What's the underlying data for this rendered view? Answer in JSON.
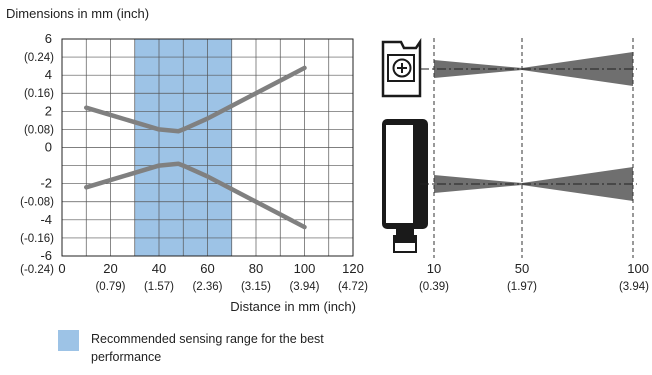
{
  "chart_data": {
    "type": "line",
    "title": "Dimensions in mm (inch)",
    "xlabel": "Distance in mm (inch)",
    "xlim": [
      0,
      120
    ],
    "ylim": [
      -6,
      6
    ],
    "grid": true,
    "x_ticks": [
      {
        "value": 0,
        "mm": "0",
        "inch": ""
      },
      {
        "value": 20,
        "mm": "20",
        "inch": "(0.79)"
      },
      {
        "value": 40,
        "mm": "40",
        "inch": "(1.57)"
      },
      {
        "value": 60,
        "mm": "60",
        "inch": "(2.36)"
      },
      {
        "value": 80,
        "mm": "80",
        "inch": "(3.15)"
      },
      {
        "value": 100,
        "mm": "100",
        "inch": "(3.94)"
      },
      {
        "value": 120,
        "mm": "120",
        "inch": "(4.72)"
      }
    ],
    "y_ticks": [
      {
        "value": 6,
        "mm": "6",
        "inch": "(0.24)"
      },
      {
        "value": 4,
        "mm": "4",
        "inch": "(0.16)"
      },
      {
        "value": 2,
        "mm": "2",
        "inch": "(0.08)"
      },
      {
        "value": 0,
        "mm": "0",
        "inch": ""
      },
      {
        "value": -2,
        "mm": "-2",
        "inch": "(-0.08)"
      },
      {
        "value": -4,
        "mm": "-4",
        "inch": "(-0.16)"
      },
      {
        "value": -6,
        "mm": "-6",
        "inch": "(-0.24)"
      }
    ],
    "shaded_range": [
      30,
      70
    ],
    "series": [
      {
        "x": [
          10,
          20,
          30,
          40,
          48,
          50,
          60,
          70,
          80,
          90,
          100
        ],
        "y": [
          2.2,
          1.8,
          1.4,
          1.0,
          0.9,
          1.0,
          1.6,
          2.3,
          3.0,
          3.7,
          4.4
        ]
      },
      {
        "x": [
          10,
          20,
          30,
          40,
          48,
          50,
          60,
          70,
          80,
          90,
          100
        ],
        "y": [
          -2.2,
          -1.8,
          -1.4,
          -1.0,
          -0.9,
          -1.0,
          -1.6,
          -2.3,
          -3.0,
          -3.7,
          -4.4
        ]
      }
    ]
  },
  "beam_diagram": {
    "ticks": [
      {
        "mm": "10",
        "inch": "(0.39)"
      },
      {
        "mm": "50",
        "inch": "(1.97)"
      },
      {
        "mm": "100",
        "inch": "(3.94)"
      }
    ]
  },
  "legend": {
    "text": "Recommended sensing range for the best performance"
  },
  "colors": {
    "shade": "#9dc3e6",
    "curve": "#808080",
    "grid": "#555555",
    "beam": "#6f6f6f",
    "sensor": "#1a1a1a"
  }
}
